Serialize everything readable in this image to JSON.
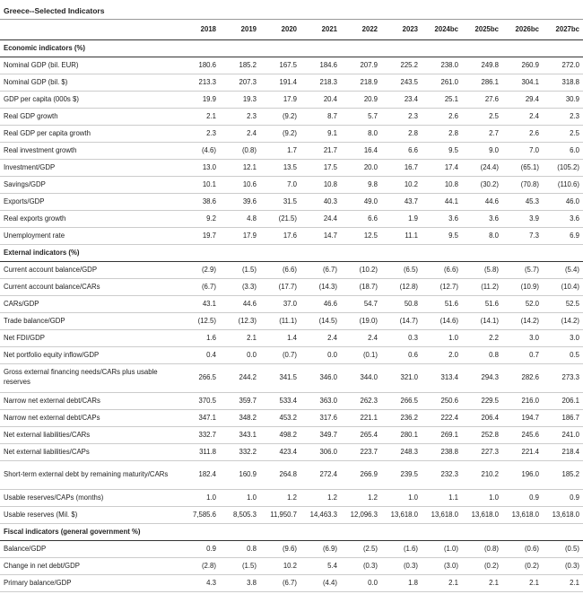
{
  "title": "Greece--Selected Indicators",
  "header": {
    "columns": [
      "2018",
      "2019",
      "2020",
      "2021",
      "2022",
      "2023",
      "2024bc",
      "2025bc",
      "2026bc",
      "2027bc"
    ]
  },
  "sections": [
    {
      "title": "Economic indicators (%)",
      "rows": [
        {
          "label": "Nominal GDP (bil. EUR)",
          "values": [
            "180.6",
            "185.2",
            "167.5",
            "184.6",
            "207.9",
            "225.2",
            "238.0",
            "249.8",
            "260.9",
            "272.0"
          ]
        },
        {
          "label": "Nominal GDP (bil. $)",
          "values": [
            "213.3",
            "207.3",
            "191.4",
            "218.3",
            "218.9",
            "243.5",
            "261.0",
            "286.1",
            "304.1",
            "318.8"
          ]
        },
        {
          "label": "GDP per capita (000s $)",
          "values": [
            "19.9",
            "19.3",
            "17.9",
            "20.4",
            "20.9",
            "23.4",
            "25.1",
            "27.6",
            "29.4",
            "30.9"
          ]
        },
        {
          "label": "Real GDP growth",
          "values": [
            "2.1",
            "2.3",
            "(9.2)",
            "8.7",
            "5.7",
            "2.3",
            "2.6",
            "2.5",
            "2.4",
            "2.3"
          ]
        },
        {
          "label": "Real GDP per capita growth",
          "values": [
            "2.3",
            "2.4",
            "(9.2)",
            "9.1",
            "8.0",
            "2.8",
            "2.8",
            "2.7",
            "2.6",
            "2.5"
          ]
        },
        {
          "label": "Real investment growth",
          "values": [
            "(4.6)",
            "(0.8)",
            "1.7",
            "21.7",
            "16.4",
            "6.6",
            "9.5",
            "9.0",
            "7.0",
            "6.0"
          ]
        },
        {
          "label": "Investment/GDP",
          "values": [
            "13.0",
            "12.1",
            "13.5",
            "17.5",
            "20.0",
            "16.7",
            "17.4",
            "(24.4)",
            "(65.1)",
            "(105.2)"
          ]
        },
        {
          "label": "Savings/GDP",
          "values": [
            "10.1",
            "10.6",
            "7.0",
            "10.8",
            "9.8",
            "10.2",
            "10.8",
            "(30.2)",
            "(70.8)",
            "(110.6)"
          ]
        },
        {
          "label": "Exports/GDP",
          "values": [
            "38.6",
            "39.6",
            "31.5",
            "40.3",
            "49.0",
            "43.7",
            "44.1",
            "44.6",
            "45.3",
            "46.0"
          ]
        },
        {
          "label": "Real exports growth",
          "values": [
            "9.2",
            "4.8",
            "(21.5)",
            "24.4",
            "6.6",
            "1.9",
            "3.6",
            "3.6",
            "3.9",
            "3.6"
          ]
        },
        {
          "label": "Unemployment rate",
          "values": [
            "19.7",
            "17.9",
            "17.6",
            "14.7",
            "12.5",
            "11.1",
            "9.5",
            "8.0",
            "7.3",
            "6.9"
          ]
        }
      ]
    },
    {
      "title": "External indicators (%)",
      "rows": [
        {
          "label": "Current account balance/GDP",
          "values": [
            "(2.9)",
            "(1.5)",
            "(6.6)",
            "(6.7)",
            "(10.2)",
            "(6.5)",
            "(6.6)",
            "(5.8)",
            "(5.7)",
            "(5.4)"
          ]
        },
        {
          "label": "Current account balance/CARs",
          "values": [
            "(6.7)",
            "(3.3)",
            "(17.7)",
            "(14.3)",
            "(18.7)",
            "(12.8)",
            "(12.7)",
            "(11.2)",
            "(10.9)",
            "(10.4)"
          ]
        },
        {
          "label": "CARs/GDP",
          "values": [
            "43.1",
            "44.6",
            "37.0",
            "46.6",
            "54.7",
            "50.8",
            "51.6",
            "51.6",
            "52.0",
            "52.5"
          ]
        },
        {
          "label": "Trade balance/GDP",
          "values": [
            "(12.5)",
            "(12.3)",
            "(11.1)",
            "(14.5)",
            "(19.0)",
            "(14.7)",
            "(14.6)",
            "(14.1)",
            "(14.2)",
            "(14.2)"
          ]
        },
        {
          "label": "Net FDI/GDP",
          "values": [
            "1.6",
            "2.1",
            "1.4",
            "2.4",
            "2.4",
            "0.3",
            "1.0",
            "2.2",
            "3.0",
            "3.0"
          ]
        },
        {
          "label": "Net portfolio equity inflow/GDP",
          "values": [
            "0.4",
            "0.0",
            "(0.7)",
            "0.0",
            "(0.1)",
            "0.6",
            "2.0",
            "0.8",
            "0.7",
            "0.5"
          ]
        },
        {
          "label": "Gross external financing needs/CARs plus usable reserves",
          "values": [
            "266.5",
            "244.2",
            "341.5",
            "346.0",
            "344.0",
            "321.0",
            "313.4",
            "294.3",
            "282.6",
            "273.3"
          ]
        },
        {
          "label": "Narrow net external debt/CARs",
          "values": [
            "370.5",
            "359.7",
            "533.4",
            "363.0",
            "262.3",
            "266.5",
            "250.6",
            "229.5",
            "216.0",
            "206.1"
          ]
        },
        {
          "label": "Narrow net external debt/CAPs",
          "values": [
            "347.1",
            "348.2",
            "453.2",
            "317.6",
            "221.1",
            "236.2",
            "222.4",
            "206.4",
            "194.7",
            "186.7"
          ]
        },
        {
          "label": "Net external liabilities/CARs",
          "values": [
            "332.7",
            "343.1",
            "498.2",
            "349.7",
            "265.4",
            "280.1",
            "269.1",
            "252.8",
            "245.6",
            "241.0"
          ]
        },
        {
          "label": "Net external liabilities/CAPs",
          "values": [
            "311.8",
            "332.2",
            "423.4",
            "306.0",
            "223.7",
            "248.3",
            "238.8",
            "227.3",
            "221.4",
            "218.4"
          ]
        },
        {
          "label": "Short-term external debt by remaining maturity/CARs",
          "values": [
            "182.4",
            "160.9",
            "264.8",
            "272.4",
            "266.9",
            "239.5",
            "232.3",
            "210.2",
            "196.0",
            "185.2"
          ]
        },
        {
          "label": "Usable reserves/CAPs (months)",
          "values": [
            "1.0",
            "1.0",
            "1.2",
            "1.2",
            "1.2",
            "1.0",
            "1.1",
            "1.0",
            "0.9",
            "0.9"
          ]
        },
        {
          "label": "Usable reserves (Mil. $)",
          "values": [
            "7,585.6",
            "8,505.3",
            "11,950.7",
            "14,463.3",
            "12,096.3",
            "13,618.0",
            "13,618.0",
            "13,618.0",
            "13,618.0",
            "13,618.0"
          ]
        }
      ]
    },
    {
      "title": "Fiscal indicators (general government %)",
      "rows": [
        {
          "label": "Balance/GDP",
          "values": [
            "0.9",
            "0.8",
            "(9.6)",
            "(6.9)",
            "(2.5)",
            "(1.6)",
            "(1.0)",
            "(0.8)",
            "(0.6)",
            "(0.5)"
          ]
        },
        {
          "label": "Change in net debt/GDP",
          "values": [
            "(2.8)",
            "(1.5)",
            "10.2",
            "5.4",
            "(0.3)",
            "(0.3)",
            "(3.0)",
            "(0.2)",
            "(0.2)",
            "(0.3)"
          ]
        },
        {
          "label": "Primary balance/GDP",
          "values": [
            "4.3",
            "3.8",
            "(6.7)",
            "(4.4)",
            "0.0",
            "1.8",
            "2.1",
            "2.1",
            "2.1",
            "2.1"
          ]
        }
      ]
    }
  ]
}
